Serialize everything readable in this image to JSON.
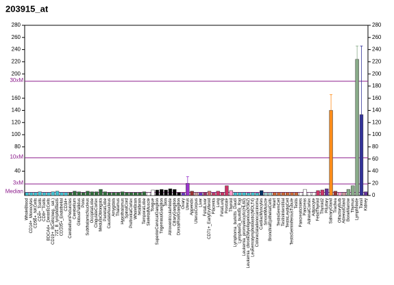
{
  "chart_data": {
    "type": "bar",
    "title": "203915_at",
    "categories": [
      "WholeBlood",
      "CD14+_Monocytes",
      "CD56+_NKCells",
      "CD4+_Tcells",
      "CD8+_Tcells",
      "BDCA4+_DentriticCells",
      "CD19+_BCells(neg._sel.)",
      "721_B_lymphoblasts",
      "CD105+_Endothelial",
      "CD34+",
      "CerebellumPeduncles",
      "Cerebellum",
      "GlobusPallidus",
      "Pons",
      "SubthalamicNucleus",
      "OccipitalLobe",
      "CingulateCortex",
      "MedullaOblongata",
      "ParietalLobe",
      "CaudateNucleus",
      "Amygdala",
      "Thalamus",
      "Hypothalamus",
      "SpinalCord",
      "PrefrontalCortex",
      "WholeBrain",
      "fetalbrain",
      "TemporalLobe",
      "SkeletalMuscle",
      "Tongue",
      "SuperiorCervicalGanglion",
      "TrigeminalGanglion",
      "Skin",
      "AtrioventricularNode",
      "CiliaryGanglion",
      "DorsalRootGanglion",
      "Ovary",
      "Uterus",
      "Appendix",
      "UterusCorpus",
      "Liver",
      "FetalLiver",
      "CD71+_EarlyErythroid",
      "Placenta",
      "Lung",
      "FetalLung",
      "Prostate",
      "Thyroid",
      "Lymphoma_burkitts_Daudi",
      "Lymphoma_burkitts_Raji",
      "Leukemia_promyelocytic(HL60)",
      "Leukemia_chronicMyelogenous(K562)",
      "Leukemialymphoblastic(MOLT4)",
      "Colorectaladenocarcinoma",
      "CardiacMyocytes",
      "SmoothMuscle",
      "BronchialEpithelialCells",
      "Heart",
      "TestisGermCell",
      "TestisInterstitial",
      "TestisLeydigCell",
      "TestisSeminiferousTubule",
      "Testis",
      "PancreaticIslets",
      "Pancreas",
      "AdrenalCortex",
      "Adipocyte",
      "FetalThyroid",
      "Thyroid2",
      "Pituitary",
      "SalivaryGland",
      "Trachea",
      "OlfactoryBulb",
      "AdrenalGland",
      "BoneMarrow",
      "Thymus",
      "LymphNode",
      "Tonsil",
      "Kidney"
    ],
    "values": [
      5,
      5,
      5,
      6,
      5,
      5,
      6,
      7,
      5,
      5,
      5,
      7,
      6,
      5,
      7,
      6,
      6,
      10,
      6,
      5,
      5,
      5,
      6,
      5,
      5,
      5,
      5,
      6,
      5,
      9,
      9,
      10,
      9,
      11,
      10,
      5,
      4,
      20,
      7,
      5,
      4,
      5,
      7,
      4,
      7,
      5,
      16,
      8,
      5,
      5,
      5,
      4,
      5,
      4,
      8,
      5,
      5,
      5,
      5,
      5,
      5,
      5,
      5,
      5,
      10,
      5,
      5,
      8,
      9,
      11,
      140,
      7,
      5,
      5,
      10,
      16,
      224,
      133,
      6
    ],
    "errors": [
      null,
      null,
      null,
      null,
      null,
      null,
      null,
      null,
      null,
      null,
      null,
      null,
      null,
      null,
      null,
      null,
      null,
      null,
      null,
      null,
      null,
      null,
      null,
      null,
      null,
      null,
      null,
      null,
      null,
      null,
      null,
      null,
      null,
      null,
      null,
      null,
      null,
      11,
      null,
      null,
      null,
      null,
      null,
      null,
      null,
      null,
      null,
      null,
      null,
      null,
      null,
      null,
      null,
      null,
      null,
      null,
      null,
      null,
      null,
      null,
      null,
      null,
      null,
      null,
      null,
      null,
      null,
      null,
      null,
      null,
      26,
      null,
      null,
      null,
      null,
      null,
      22,
      113,
      null
    ],
    "colors": [
      "#40c0d0",
      "#40c0d0",
      "#40c0d0",
      "#40c0d0",
      "#40c0d0",
      "#40c0d0",
      "#40c0d0",
      "#40c0d0",
      "#40c0d0",
      "#40c0d0",
      "#2e6b3a",
      "#2e6b3a",
      "#2e6b3a",
      "#2e6b3a",
      "#2e6b3a",
      "#2e6b3a",
      "#2e6b3a",
      "#2e6b3a",
      "#2e6b3a",
      "#2e6b3a",
      "#2e6b3a",
      "#2e6b3a",
      "#2e6b3a",
      "#2e6b3a",
      "#2e6b3a",
      "#2e6b3a",
      "#2e6b3a",
      "#2e6b3a",
      "#ffffff",
      "#ffffff",
      "#000000",
      "#000000",
      "#000000",
      "#000000",
      "#000000",
      "#000000",
      "#6633cc",
      "#9933cc",
      "#993333",
      "#cc9999",
      "#6633cc",
      "#993366",
      "#cc6666",
      "#cc3366",
      "#cc3366",
      "#cc3366",
      "#cc3366",
      "#ff99cc",
      "#40c0d0",
      "#40c0d0",
      "#40c0d0",
      "#40c0d0",
      "#40c0d0",
      "#40c0d0",
      "#003366",
      "#99cccc",
      "#99cccc",
      "#cc6633",
      "#cc6633",
      "#cc6633",
      "#cc6633",
      "#cc6633",
      "#cc6633",
      "#ffffff",
      "#ffffff",
      "#ffffff",
      "#ffffff",
      "#cc3366",
      "#cc3366",
      "#663399",
      "#ff8c1a",
      "#993333",
      "#ff99cc",
      "#cc9999",
      "#88aa88",
      "#88aa88",
      "#88aa88",
      "#333399",
      "#663399"
    ],
    "ylim": [
      0,
      280
    ],
    "yticks": [
      0,
      20,
      40,
      60,
      80,
      100,
      120,
      140,
      160,
      180,
      200,
      220,
      240,
      260,
      280
    ],
    "left_yticks": [
      40,
      80,
      100,
      120,
      140,
      160,
      200,
      220,
      240,
      260,
      280
    ],
    "reference_lines": [
      {
        "value": 188,
        "label": "30xM"
      },
      {
        "value": 62,
        "label": "10xM"
      },
      {
        "value": 19,
        "label": "3xM"
      },
      {
        "value": 5,
        "label": "Median"
      }
    ]
  }
}
